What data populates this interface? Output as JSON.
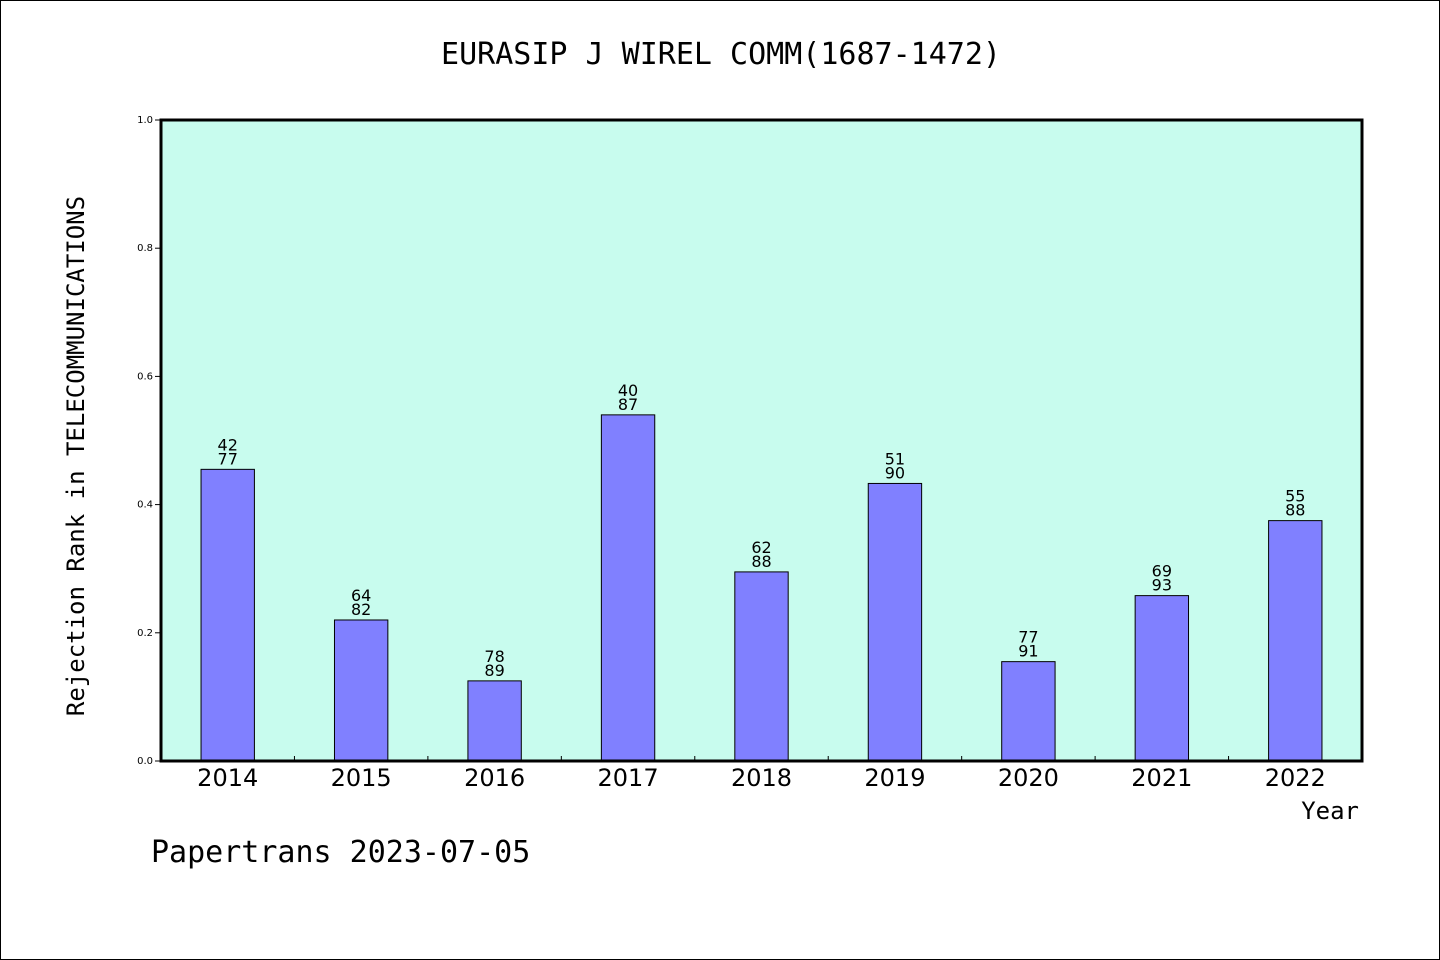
{
  "title": "EURASIP J WIREL COMM(1687-1472)",
  "footer": "Papertrans 2023-07-05",
  "colors": {
    "plot_bg": "#c8fcee",
    "bar": "#8080ff",
    "axis": "#000000"
  },
  "chart_data": {
    "type": "bar",
    "xlabel": "Year",
    "ylabel": "Rejection Rank in TELECOMMUNICATIONS",
    "ylim": [
      0,
      1.0
    ],
    "yticks": [
      "0.0",
      "0.2",
      "0.4",
      "0.6",
      "0.8",
      "1.0"
    ],
    "grid": false,
    "categories": [
      "2014",
      "2015",
      "2016",
      "2017",
      "2018",
      "2019",
      "2020",
      "2021",
      "2022"
    ],
    "values": [
      0.455,
      0.22,
      0.125,
      0.54,
      0.295,
      0.433,
      0.155,
      0.258,
      0.375
    ],
    "data_labels": [
      [
        "42",
        "77"
      ],
      [
        "64",
        "82"
      ],
      [
        "78",
        "89"
      ],
      [
        "40",
        "87"
      ],
      [
        "62",
        "88"
      ],
      [
        "51",
        "90"
      ],
      [
        "77",
        "91"
      ],
      [
        "69",
        "93"
      ],
      [
        "55",
        "88"
      ]
    ]
  }
}
